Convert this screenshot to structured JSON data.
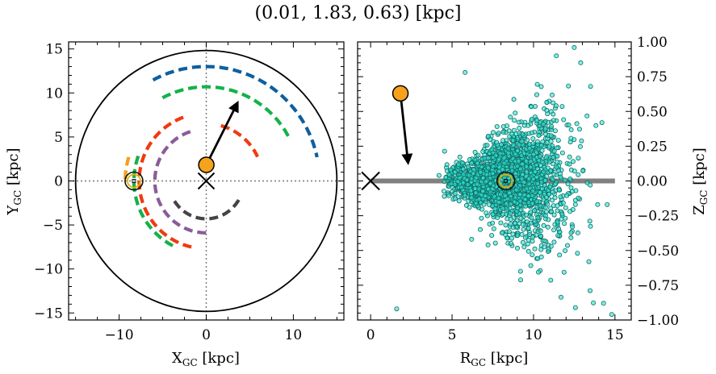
{
  "figure": {
    "title": "(0.01, 1.83, 0.63) [kpc]"
  },
  "chart_data": [
    {
      "type": "scatter",
      "panel": "left",
      "xlabel": "X",
      "xlabel_sub": "GC",
      "xlabel_unit": " [kpc]",
      "ylabel": "Y",
      "ylabel_sub": "GC",
      "ylabel_unit": " [kpc]",
      "xlim": [
        -15.8,
        15.8
      ],
      "ylim": [
        -15.8,
        15.8
      ],
      "xticks": [
        -10,
        0,
        10
      ],
      "yticks": [
        15,
        10,
        5,
        0,
        -5,
        -10,
        -15
      ],
      "tick_labels_x": [
        "−10",
        "0",
        "10"
      ],
      "tick_labels_y": [
        "15",
        "10",
        "5",
        "0",
        "−5",
        "−10",
        "−15"
      ],
      "boundary_circle_radius": 15,
      "star": {
        "x": 0.01,
        "y": 1.83
      },
      "velocity_arrow": {
        "x0": 0.01,
        "y0": 1.83,
        "x1": 3.6,
        "y1": 8.9
      },
      "galactic_center": {
        "x": 0,
        "y": 0
      },
      "sun": {
        "x": -8.3,
        "y": 0
      },
      "arms": [
        {
          "color": "#0d5fa0",
          "radius": 13.0,
          "start_deg": 118,
          "end_deg": 12
        },
        {
          "color": "#14b24a",
          "radius": 10.7,
          "start_deg": 118,
          "end_deg": 28
        },
        {
          "color": "#14b24a",
          "radius": 8.3,
          "start_deg": 160,
          "end_deg": 245
        },
        {
          "color": "#ef3a10",
          "radius": 7.7,
          "start_deg": 110,
          "end_deg": 258
        },
        {
          "color": "#ef3a10",
          "radius": 6.5,
          "start_deg": 75,
          "end_deg": 25
        },
        {
          "color": "#8a5c9a",
          "radius": 5.9,
          "start_deg": 108,
          "end_deg": 272
        },
        {
          "color": "#444444",
          "radius": 4.3,
          "start_deg": 212,
          "end_deg": 330
        },
        {
          "color": "#f2a11f",
          "radius": 9.3,
          "start_deg": 163,
          "end_deg": 182
        }
      ]
    },
    {
      "type": "scatter",
      "panel": "right",
      "xlabel": "R",
      "xlabel_sub": "GC",
      "xlabel_unit": " [kpc]",
      "ylabel": "Z",
      "ylabel_sub": "GC",
      "ylabel_unit": " [kpc]",
      "xlim": [
        -0.8,
        16.0
      ],
      "ylim": [
        -1.0,
        1.0
      ],
      "xticks": [
        0,
        5,
        10,
        15
      ],
      "yticks": [
        1.0,
        0.75,
        0.5,
        0.25,
        0.0,
        -0.25,
        -0.5,
        -0.75,
        -1.0
      ],
      "tick_labels_x": [
        "0",
        "5",
        "10",
        "15"
      ],
      "tick_labels_y": [
        "1.00",
        "0.75",
        "0.50",
        "0.25",
        "0.00",
        "−0.25",
        "−0.50",
        "−0.75",
        "−1.00"
      ],
      "disk_line": {
        "x0": 0,
        "x1": 15,
        "z": 0
      },
      "star": {
        "r": 1.83,
        "z": 0.63
      },
      "velocity_arrow": {
        "r0": 1.83,
        "z0": 0.63,
        "r1": 2.3,
        "z1": 0.13
      },
      "galactic_center": {
        "r": 0,
        "z": 0
      },
      "sun": {
        "r": 8.3,
        "z": 0
      },
      "scatter_cloud": {
        "count": 2200,
        "r_min": 4.5,
        "r_max": 15,
        "color": "#2ee6d6"
      }
    }
  ],
  "colors": {
    "star_fill": "#f6a21c",
    "cloud_fill": "#2ee6d6",
    "cloud_edge": "#136b63",
    "disk_line": "#808080",
    "sun_ring": "#e2b20a",
    "circle": "#000000"
  }
}
